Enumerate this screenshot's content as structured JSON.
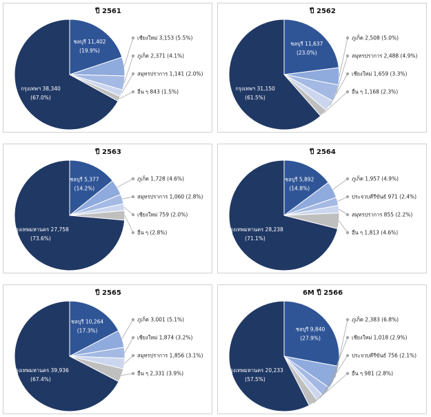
{
  "colors": {
    "bangkok": "#203864",
    "chonburi": "#2f5597",
    "series3": "#8faadc",
    "series4": "#a4b9e3",
    "series5": "#cbd6ee",
    "other": "#bfbfbf",
    "leader": "#a6a6a6",
    "panel_border": "#d0d0d0"
  },
  "chart_data": [
    {
      "type": "pie",
      "title": "ปี 2561",
      "slices": [
        {
          "label": "ชลบุรี",
          "value": 11402,
          "value_text": "11,402",
          "pct": 19.9,
          "pct_text": "(19.9%)",
          "color_key": "chonburi"
        },
        {
          "label": "เชียงใหม่",
          "value": 3153,
          "value_text": "3,153",
          "pct": 5.5,
          "pct_text": "(5.5%)",
          "color_key": "series3"
        },
        {
          "label": "ภูเก็ต",
          "value": 2371,
          "value_text": "2,371",
          "pct": 4.1,
          "pct_text": "(4.1%)",
          "color_key": "series4"
        },
        {
          "label": "สมุทรปราการ",
          "value": 1141,
          "value_text": "1,141",
          "pct": 2.0,
          "pct_text": "(2.0%)",
          "color_key": "series5"
        },
        {
          "label": "อื่น ๆ",
          "value": 843,
          "value_text": "843",
          "pct": 1.5,
          "pct_text": "(1.5%)",
          "color_key": "other"
        },
        {
          "label": "กรุงเทพฯ",
          "value": 38340,
          "value_text": "38,340",
          "pct": 67.0,
          "pct_text": "(67.0%)",
          "color_key": "bangkok"
        }
      ]
    },
    {
      "type": "pie",
      "title": "ปี 2562",
      "slices": [
        {
          "label": "ชลบุรี",
          "value": 11637,
          "value_text": "11,637",
          "pct": 23.0,
          "pct_text": "(23.0%)",
          "color_key": "chonburi"
        },
        {
          "label": "ภูเก็ต",
          "value": 2508,
          "value_text": "2,508",
          "pct": 5.0,
          "pct_text": "(5.0%)",
          "color_key": "series3"
        },
        {
          "label": "สมุทรปราการ",
          "value": 2488,
          "value_text": "2,488",
          "pct": 4.9,
          "pct_text": "(4.9%)",
          "color_key": "series4"
        },
        {
          "label": "เชียงใหม่",
          "value": 1659,
          "value_text": "1,659",
          "pct": 3.3,
          "pct_text": "(3.3%)",
          "color_key": "series5"
        },
        {
          "label": "อื่น ๆ",
          "value": 1168,
          "value_text": "1,168",
          "pct": 2.3,
          "pct_text": "(2.3%)",
          "color_key": "other"
        },
        {
          "label": "กรุงเทพฯ",
          "value": 31150,
          "value_text": "31,150",
          "pct": 61.5,
          "pct_text": "(61.5%)",
          "color_key": "bangkok"
        }
      ]
    },
    {
      "type": "pie",
      "title": "ปี 2563",
      "slices": [
        {
          "label": "ชลบุรี",
          "value": 5377,
          "value_text": "5,377",
          "pct": 14.2,
          "pct_text": "(14.2%)",
          "color_key": "chonburi"
        },
        {
          "label": "ภูเก็ต",
          "value": 1728,
          "value_text": "1,728",
          "pct": 4.6,
          "pct_text": "(4.6%)",
          "color_key": "series3"
        },
        {
          "label": "สมุทรปราการ",
          "value": 1060,
          "value_text": "1,060",
          "pct": 2.8,
          "pct_text": "(2.8%)",
          "color_key": "series4"
        },
        {
          "label": "เชียงใหม่",
          "value": 759,
          "value_text": "759",
          "pct": 2.0,
          "pct_text": "(2.0%)",
          "color_key": "series5"
        },
        {
          "label": "อื่น ๆ",
          "value": null,
          "value_text": "",
          "pct": 2.8,
          "pct_text": "(2.8%)",
          "color_key": "other"
        },
        {
          "label": "กรุงเทพมหานคร",
          "value": 27758,
          "value_text": "27,758",
          "pct": 73.6,
          "pct_text": "(73.6%)",
          "color_key": "bangkok"
        }
      ]
    },
    {
      "type": "pie",
      "title": "ปี 2564",
      "slices": [
        {
          "label": "ชลบุรี",
          "value": 5892,
          "value_text": "5,892",
          "pct": 14.8,
          "pct_text": "(14.8%)",
          "color_key": "chonburi"
        },
        {
          "label": "ภูเก็ต",
          "value": 1957,
          "value_text": "1,957",
          "pct": 4.9,
          "pct_text": "(4.9%)",
          "color_key": "series3"
        },
        {
          "label": "ประจวบคีรีขันธ์",
          "value": 971,
          "value_text": "971",
          "pct": 2.4,
          "pct_text": "(2.4%)",
          "color_key": "series4"
        },
        {
          "label": "สมุทรปราการ",
          "value": 855,
          "value_text": "855",
          "pct": 2.2,
          "pct_text": "(2.2%)",
          "color_key": "series5"
        },
        {
          "label": "อื่น ๆ",
          "value": 1813,
          "value_text": "1,813",
          "pct": 4.6,
          "pct_text": "(4.6%)",
          "color_key": "other"
        },
        {
          "label": "กรุงเทพมหานคร",
          "value": 28238,
          "value_text": "28,238",
          "pct": 71.1,
          "pct_text": "(71.1%)",
          "color_key": "bangkok"
        }
      ]
    },
    {
      "type": "pie",
      "title": "ปี 2565",
      "slices": [
        {
          "label": "ชลบุรี",
          "value": 10264,
          "value_text": "10,264",
          "pct": 17.3,
          "pct_text": "(17.3%)",
          "color_key": "chonburi"
        },
        {
          "label": "ภูเก็ต",
          "value": 3001,
          "value_text": "3,001",
          "pct": 5.1,
          "pct_text": "(5.1%)",
          "color_key": "series3"
        },
        {
          "label": "เชียงใหม่",
          "value": 1874,
          "value_text": "1,874",
          "pct": 3.2,
          "pct_text": "(3.2%)",
          "color_key": "series4"
        },
        {
          "label": "สมุทรปราการ",
          "value": 1856,
          "value_text": "1,856",
          "pct": 3.1,
          "pct_text": "(3.1%)",
          "color_key": "series5"
        },
        {
          "label": "อื่น ๆ",
          "value": 2331,
          "value_text": "2,331",
          "pct": 3.9,
          "pct_text": "(3.9%)",
          "color_key": "other"
        },
        {
          "label": "กรุงเทพมหานคร",
          "value": 39936,
          "value_text": "39,936",
          "pct": 67.4,
          "pct_text": "(67.4%)",
          "color_key": "bangkok"
        }
      ]
    },
    {
      "type": "pie",
      "title": "6M ปี 2566",
      "slices": [
        {
          "label": "ชลบุรี",
          "value": 9840,
          "value_text": "9,840",
          "pct": 27.9,
          "pct_text": "(27.9%)",
          "color_key": "chonburi"
        },
        {
          "label": "ภูเก็ต",
          "value": 2383,
          "value_text": "2,383",
          "pct": 6.8,
          "pct_text": "(6.8%)",
          "color_key": "series3"
        },
        {
          "label": "เชียงใหม่",
          "value": 1018,
          "value_text": "1,018",
          "pct": 2.9,
          "pct_text": "(2.9%)",
          "color_key": "series4"
        },
        {
          "label": "ประจวบคีรีขันธ์",
          "value": 756,
          "value_text": "756",
          "pct": 2.1,
          "pct_text": "(2.1%)",
          "color_key": "series5"
        },
        {
          "label": "อื่น ๆ",
          "value": 981,
          "value_text": "981",
          "pct": 2.8,
          "pct_text": "(2.8%)",
          "color_key": "other"
        },
        {
          "label": "กรุงเทพมหานคร",
          "value": 20233,
          "value_text": "20,233",
          "pct": 57.5,
          "pct_text": "(57.5%)",
          "color_key": "bangkok"
        }
      ]
    }
  ]
}
